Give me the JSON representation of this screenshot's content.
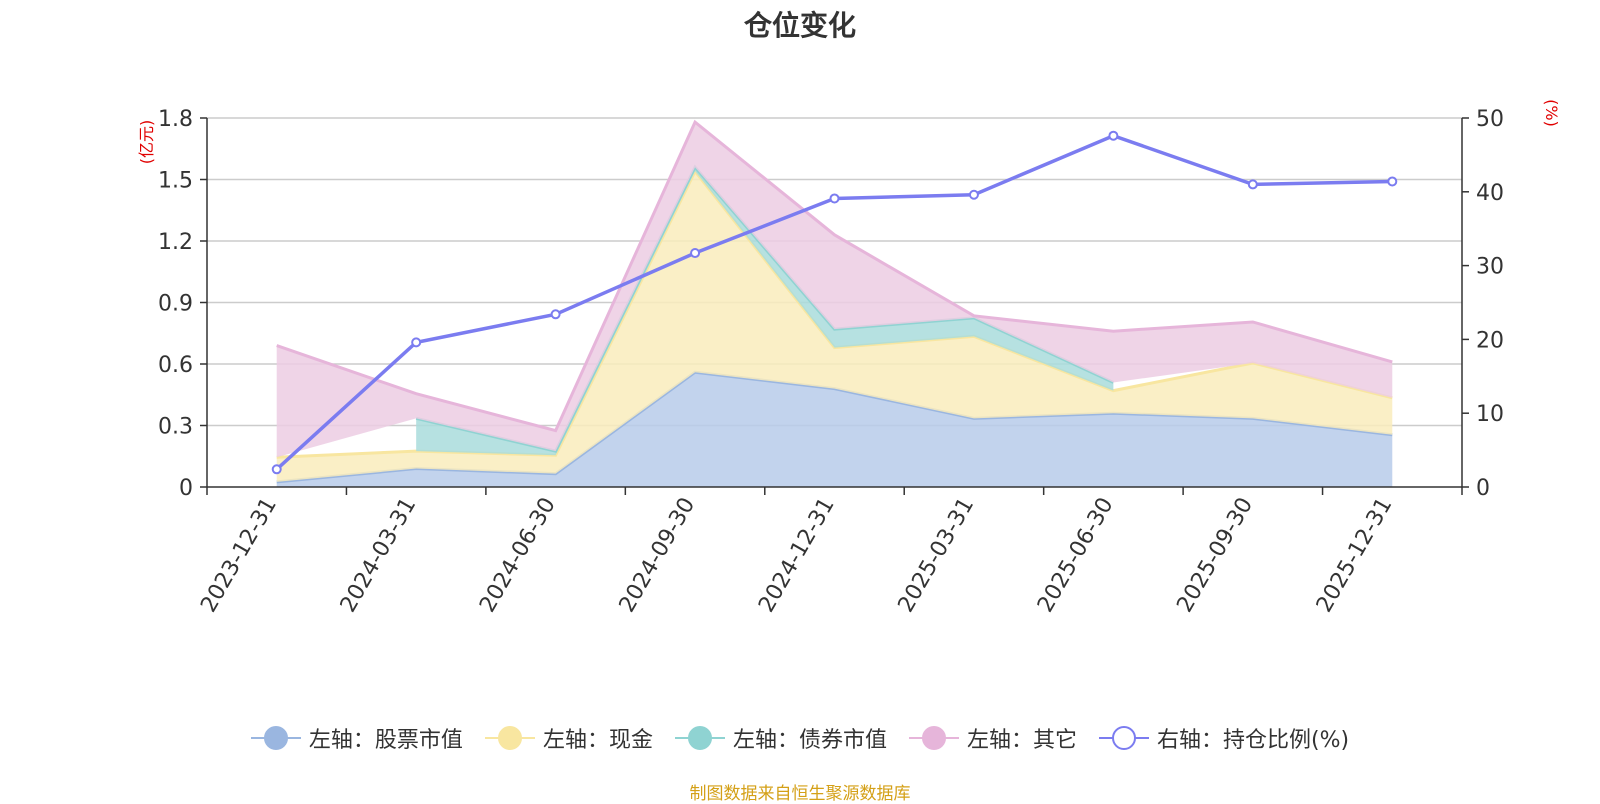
{
  "chart_data": {
    "type": "area",
    "title": "仓位变化",
    "source": "制图数据来自恒生聚源数据库",
    "left_axis": {
      "unit": "(亿元)",
      "ticks": [
        "0",
        "0.3",
        "0.6",
        "0.9",
        "1.2",
        "1.5",
        "1.8"
      ],
      "range": [
        0,
        1.8
      ]
    },
    "right_axis": {
      "unit": "(%)",
      "ticks": [
        "0",
        "10",
        "20",
        "30",
        "40",
        "50"
      ],
      "range": [
        0,
        50
      ]
    },
    "categories": [
      "2023-12-31",
      "2024-03-31",
      "2024-06-30",
      "2024-09-30",
      "2024-12-31",
      "2025-03-31",
      "2025-06-30",
      "2025-09-30",
      "2025-12-31"
    ],
    "stacked_series": [
      {
        "name": "左轴：股票市值",
        "color": "#9ab6e0",
        "fill": "#b7cbea",
        "values": [
          0.025,
          0.09,
          0.065,
          0.56,
          0.48,
          0.335,
          0.36,
          0.335,
          0.255
        ]
      },
      {
        "name": "左轴：现金",
        "color": "#f8e6a0",
        "fill": "#f9ecbc",
        "values": [
          0.12,
          0.085,
          0.09,
          0.98,
          0.2,
          0.4,
          0.11,
          0.27,
          0.18
        ]
      },
      {
        "name": "左轴：债券市值",
        "color": "#8fd3d2",
        "fill": "#a9dcdc",
        "values": [
          null,
          0.16,
          0.02,
          0.02,
          0.09,
          0.09,
          0.04,
          null,
          null
        ]
      },
      {
        "name": "左轴：其它",
        "color": "#e6b5da",
        "fill": "#ecccE3",
        "values": [
          0.545,
          0.12,
          0.1,
          0.22,
          0.46,
          0.01,
          0.25,
          0.2,
          0.175
        ]
      }
    ],
    "line_series": {
      "name": "右轴：持仓比例(%)",
      "color": "#7b7cf0",
      "axis": "right",
      "values": [
        2.4,
        19.6,
        23.4,
        31.7,
        39.1,
        39.6,
        47.6,
        41.0,
        41.4
      ]
    }
  }
}
